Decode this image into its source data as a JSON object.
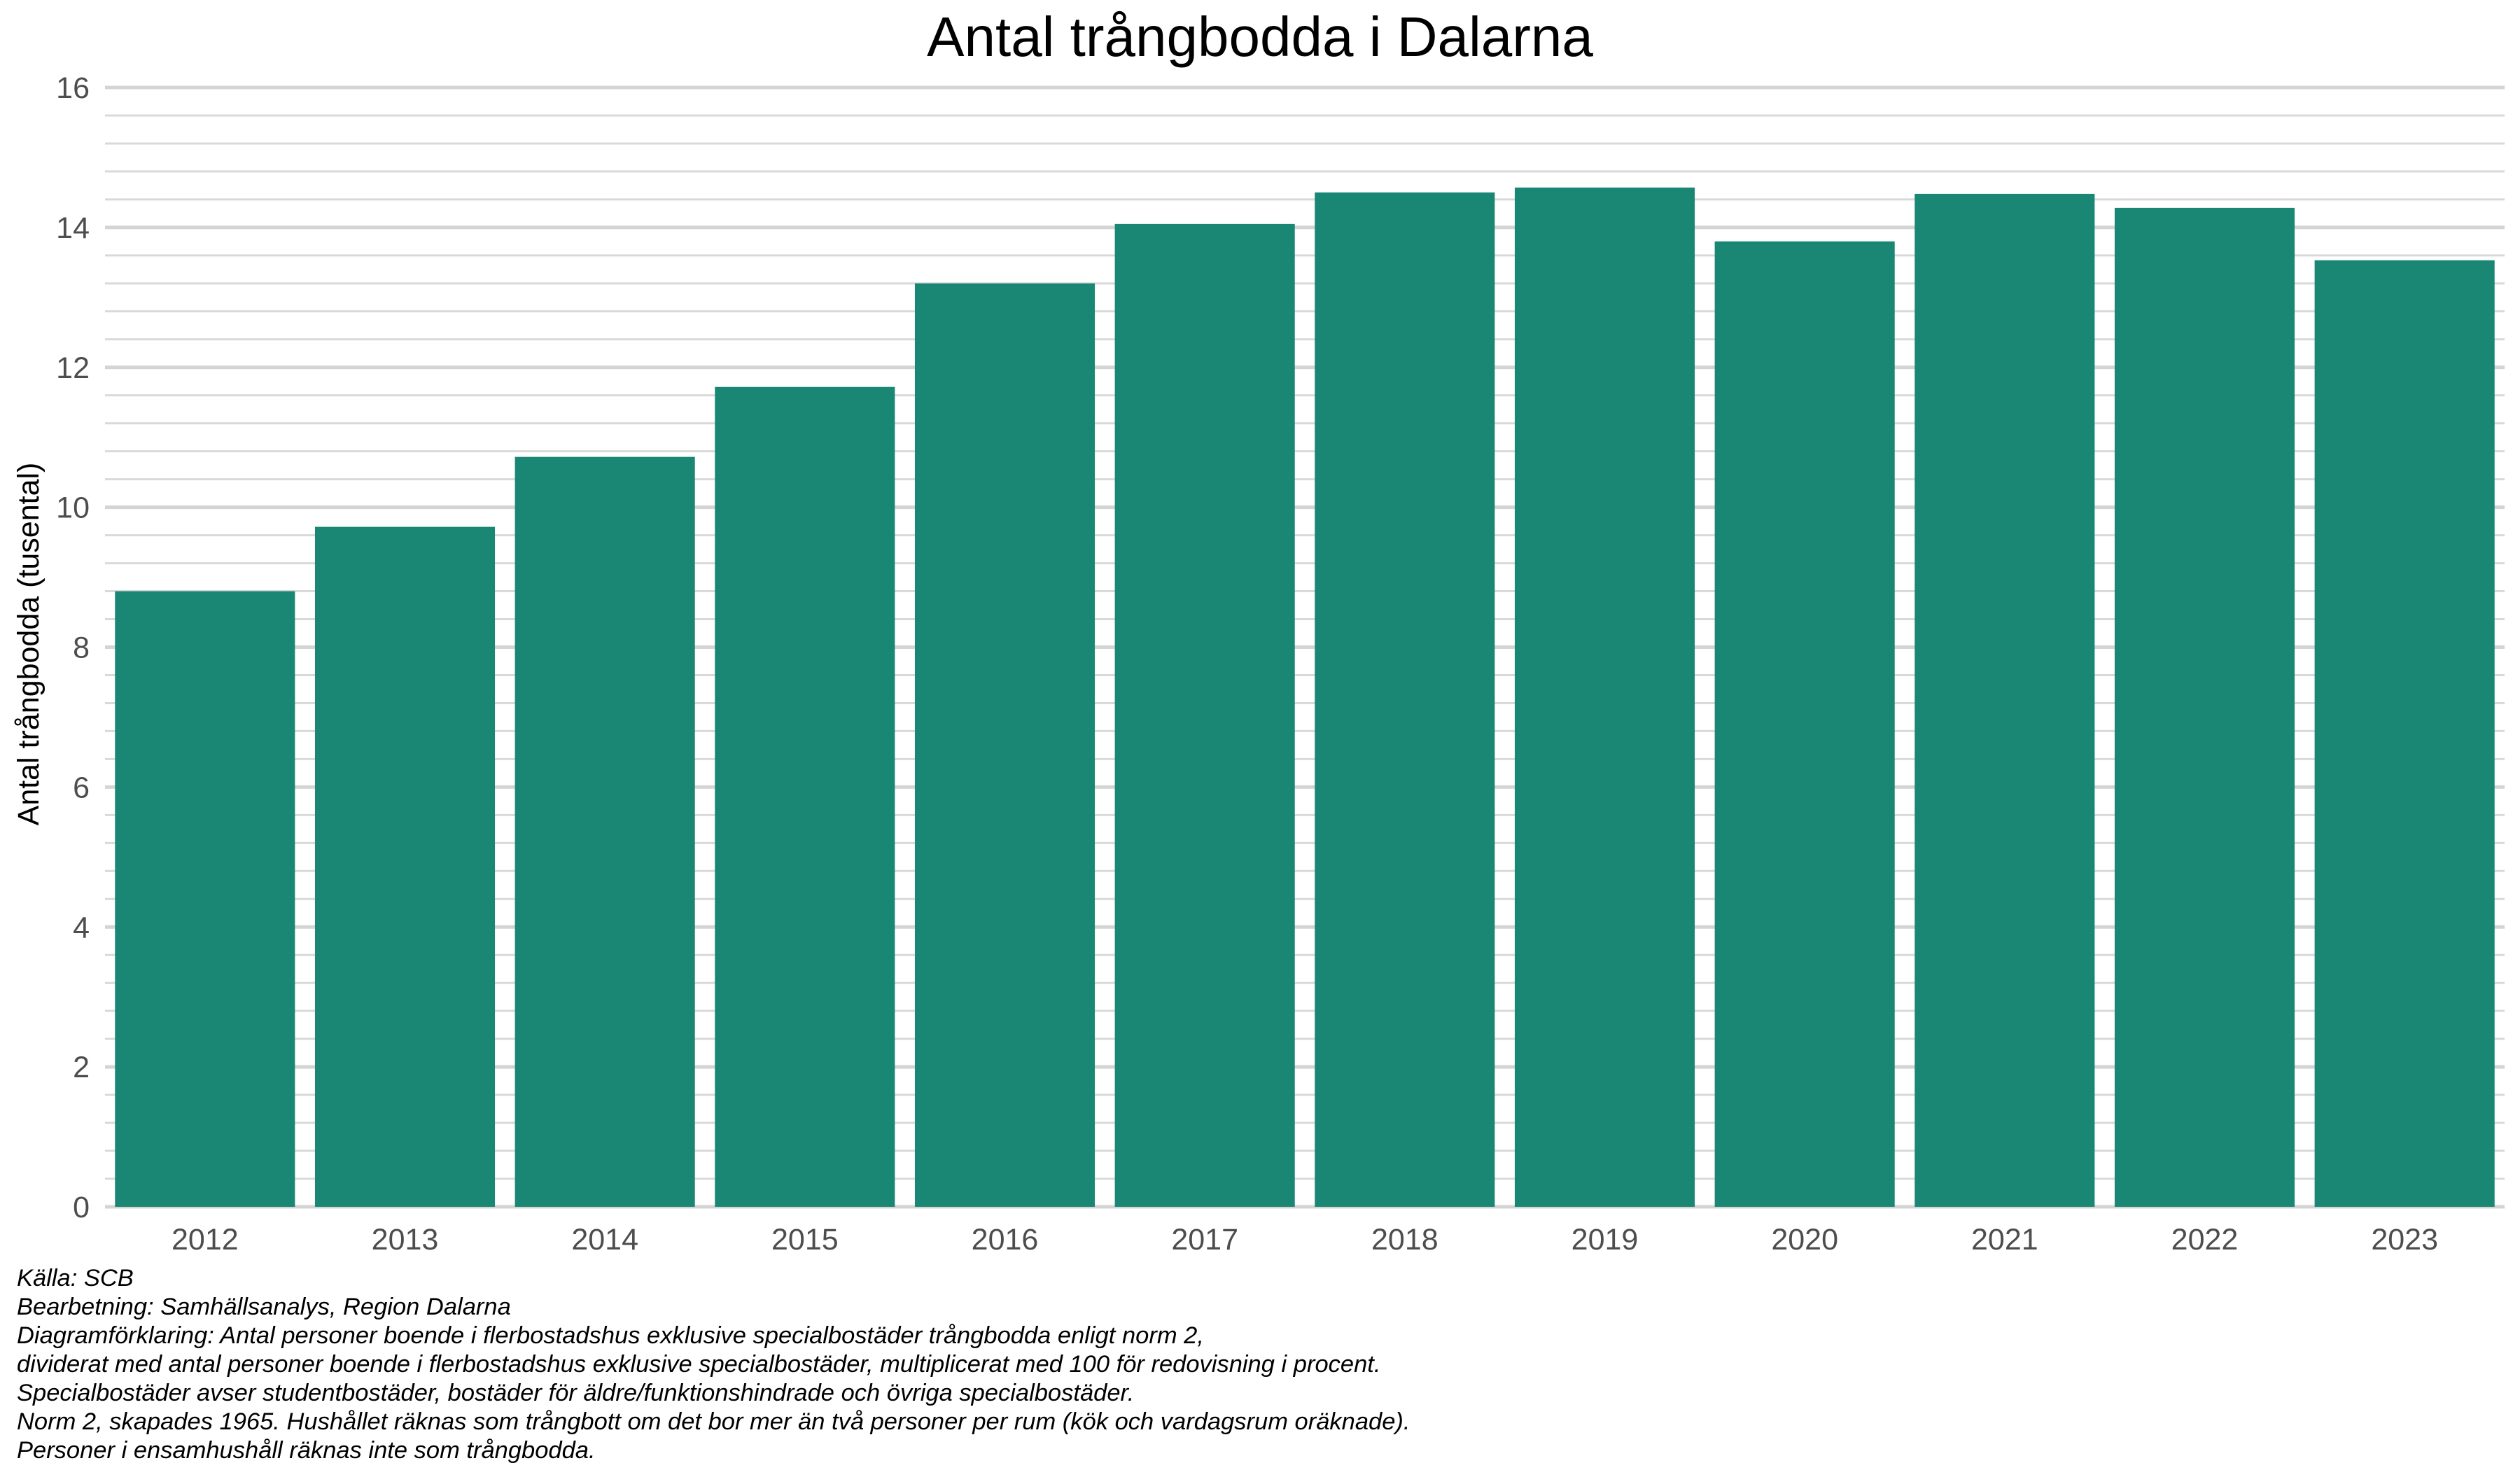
{
  "chart_data": {
    "type": "bar",
    "title": "Antal trångbodda i Dalarna",
    "xlabel": "",
    "ylabel": "Antal trångbodda (tusental)",
    "categories": [
      "2012",
      "2013",
      "2014",
      "2015",
      "2016",
      "2017",
      "2018",
      "2019",
      "2020",
      "2021",
      "2022",
      "2023"
    ],
    "values": [
      8.8,
      9.72,
      10.72,
      11.72,
      13.2,
      14.05,
      14.5,
      14.57,
      13.8,
      14.48,
      14.28,
      13.53
    ],
    "ylim": [
      0,
      16
    ],
    "yticks": [
      "0",
      "2",
      "4",
      "6",
      "8",
      "10",
      "12",
      "14",
      "16"
    ],
    "grid": "horizontal major and minor",
    "legend": "none",
    "colors": {
      "bar": "#1a8774",
      "grid_major": "#d4d4d4",
      "grid_minor": "#d9d9d9",
      "tick_text": "#4d4d4d"
    }
  },
  "caption": {
    "lines": [
      "Källa: SCB",
      "Bearbetning: Samhällsanalys, Region Dalarna",
      "Diagramförklaring: Antal personer boende i flerbostadshus exklusive specialbostäder trångbodda enligt norm 2,",
      "dividerat med antal personer boende i flerbostadshus exklusive specialbostäder, multiplicerat med 100 för redovisning i procent.",
      "Specialbostäder avser studentbostäder, bostäder för äldre/funktionshindrade och övriga specialbostäder.",
      "Norm 2, skapades 1965. Hushållet räknas som trångbott om det bor mer än två personer per rum (kök och vardagsrum oräknade).",
      "Personer i ensamhushåll räknas inte som trångbodda."
    ]
  }
}
